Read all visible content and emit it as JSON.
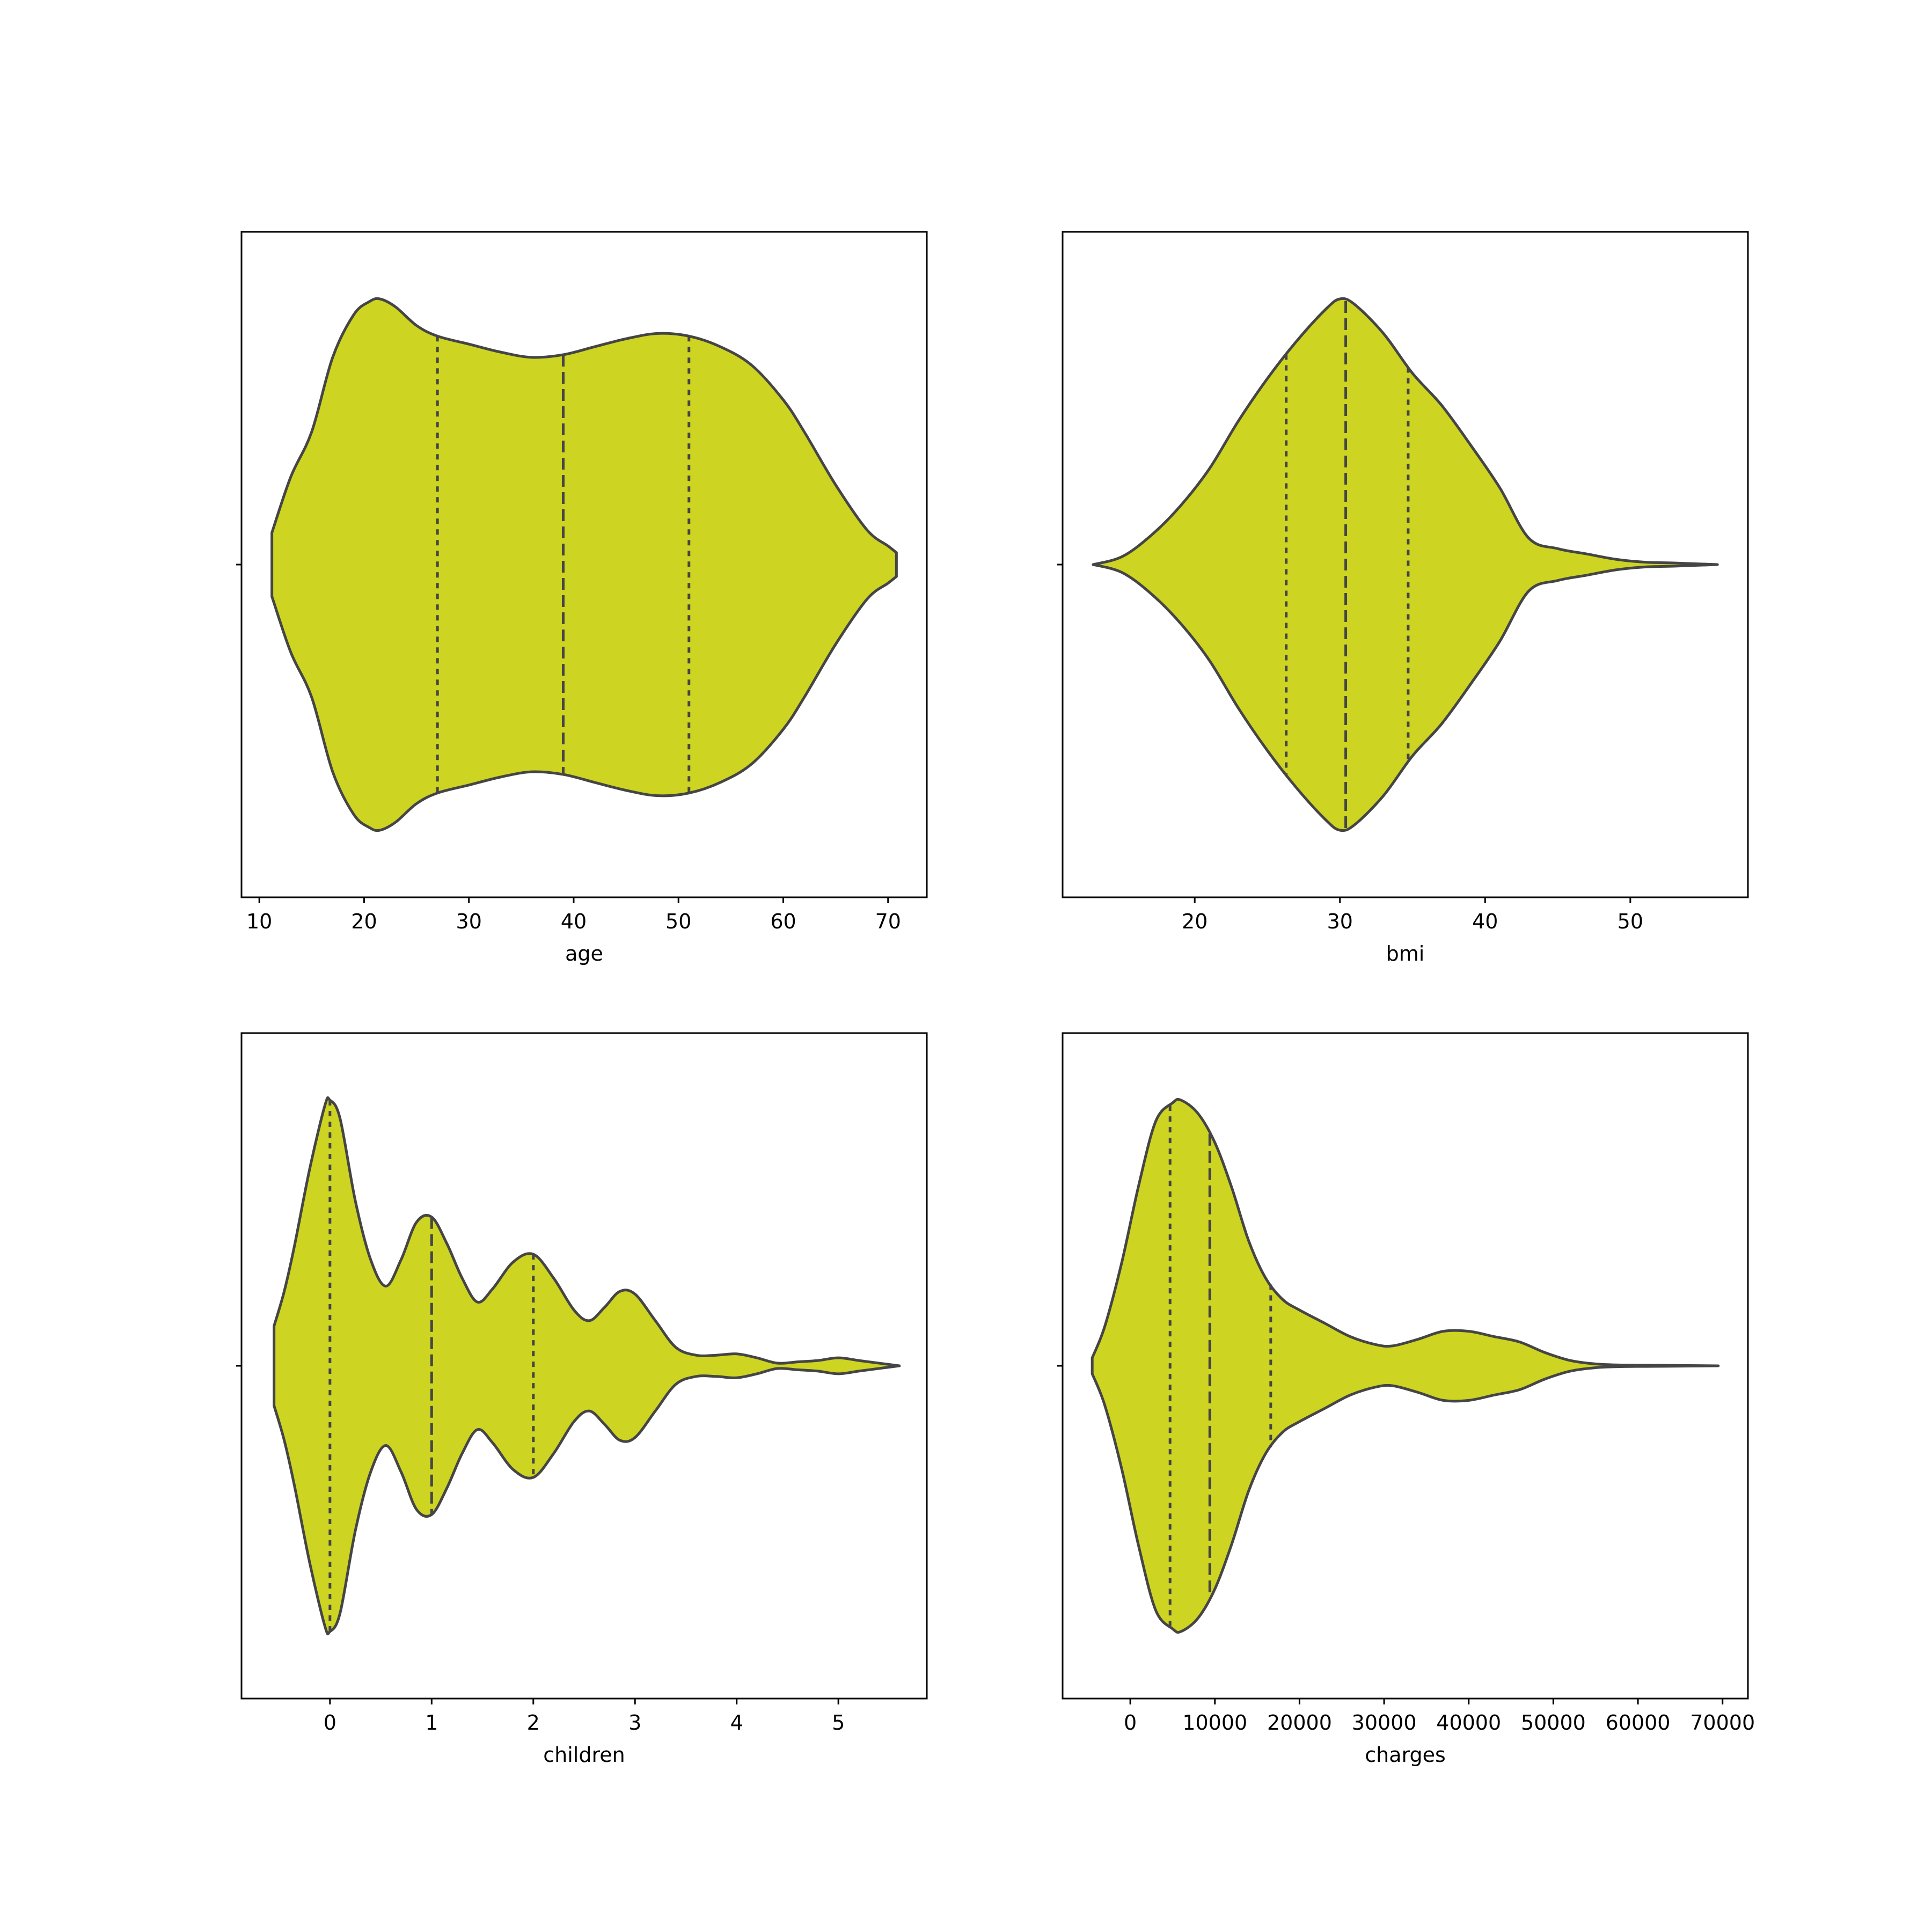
{
  "figure": {
    "fill_color": "#cdd422",
    "edge_color": "#454545",
    "background": "#ffffff"
  },
  "chart_data": [
    {
      "type": "violin",
      "xlabel": "age",
      "ylabel": "",
      "xlim": [
        8.3,
        73.7
      ],
      "xticks": [
        10,
        20,
        30,
        40,
        50,
        60,
        70
      ],
      "range": [
        11.2,
        70.8
      ],
      "density": [
        [
          11.2,
          0.12
        ],
        [
          13,
          0.33
        ],
        [
          15,
          0.5
        ],
        [
          17,
          0.78
        ],
        [
          19,
          0.94
        ],
        [
          20.5,
          0.99
        ],
        [
          21.5,
          1.0
        ],
        [
          23,
          0.97
        ],
        [
          25,
          0.9
        ],
        [
          27,
          0.86
        ],
        [
          30,
          0.83
        ],
        [
          33,
          0.8
        ],
        [
          36,
          0.78
        ],
        [
          39,
          0.79
        ],
        [
          42,
          0.82
        ],
        [
          45,
          0.85
        ],
        [
          48,
          0.87
        ],
        [
          51,
          0.86
        ],
        [
          54,
          0.82
        ],
        [
          57,
          0.75
        ],
        [
          60,
          0.62
        ],
        [
          62,
          0.5
        ],
        [
          65,
          0.3
        ],
        [
          68,
          0.13
        ],
        [
          70,
          0.07
        ],
        [
          70.8,
          0.045
        ]
      ],
      "quartiles": [
        27,
        39,
        51
      ],
      "median": 39
    },
    {
      "type": "violin",
      "xlabel": "bmi",
      "ylabel": "",
      "xlim": [
        10.9,
        58.1
      ],
      "xticks": [
        20,
        30,
        40,
        50
      ],
      "range": [
        13.0,
        56.0
      ],
      "density": [
        [
          13,
          0.0
        ],
        [
          15,
          0.03
        ],
        [
          17,
          0.11
        ],
        [
          19,
          0.22
        ],
        [
          21,
          0.36
        ],
        [
          23,
          0.54
        ],
        [
          25,
          0.7
        ],
        [
          27,
          0.84
        ],
        [
          29,
          0.96
        ],
        [
          30,
          1.0
        ],
        [
          31,
          0.98
        ],
        [
          33,
          0.87
        ],
        [
          35,
          0.72
        ],
        [
          37,
          0.6
        ],
        [
          39,
          0.45
        ],
        [
          41,
          0.29
        ],
        [
          43,
          0.1
        ],
        [
          45,
          0.06
        ],
        [
          47,
          0.04
        ],
        [
          49,
          0.02
        ],
        [
          51,
          0.009
        ],
        [
          53,
          0.006
        ],
        [
          56,
          0.0
        ]
      ],
      "quartiles": [
        26.3,
        30.4,
        34.7
      ],
      "median": 30.4
    },
    {
      "type": "violin",
      "xlabel": "children",
      "ylabel": "",
      "xlim": [
        -0.87,
        5.87
      ],
      "xticks": [
        0,
        1,
        2,
        3,
        4,
        5
      ],
      "range": [
        -0.55,
        5.6
      ],
      "density": [
        [
          -0.55,
          0.15
        ],
        [
          -0.45,
          0.28
        ],
        [
          -0.35,
          0.45
        ],
        [
          -0.2,
          0.74
        ],
        [
          -0.05,
          0.98
        ],
        [
          0.0,
          1.0
        ],
        [
          0.1,
          0.93
        ],
        [
          0.25,
          0.62
        ],
        [
          0.4,
          0.4
        ],
        [
          0.55,
          0.3
        ],
        [
          0.7,
          0.4
        ],
        [
          0.85,
          0.54
        ],
        [
          1.0,
          0.56
        ],
        [
          1.15,
          0.46
        ],
        [
          1.3,
          0.33
        ],
        [
          1.45,
          0.24
        ],
        [
          1.6,
          0.29
        ],
        [
          1.8,
          0.39
        ],
        [
          2.0,
          0.42
        ],
        [
          2.2,
          0.33
        ],
        [
          2.4,
          0.21
        ],
        [
          2.55,
          0.17
        ],
        [
          2.7,
          0.22
        ],
        [
          2.85,
          0.28
        ],
        [
          3.0,
          0.27
        ],
        [
          3.2,
          0.17
        ],
        [
          3.4,
          0.07
        ],
        [
          3.6,
          0.04
        ],
        [
          3.8,
          0.04
        ],
        [
          4.0,
          0.045
        ],
        [
          4.2,
          0.03
        ],
        [
          4.4,
          0.01
        ],
        [
          4.6,
          0.015
        ],
        [
          4.8,
          0.02
        ],
        [
          5.0,
          0.03
        ],
        [
          5.2,
          0.02
        ],
        [
          5.4,
          0.01
        ],
        [
          5.6,
          0.0
        ]
      ],
      "quartiles": [
        0,
        1,
        2
      ],
      "median": 1
    },
    {
      "type": "violin",
      "xlabel": "charges",
      "ylabel": "",
      "xlim": [
        -8000,
        73000
      ],
      "xticks": [
        0,
        10000,
        20000,
        30000,
        40000,
        50000,
        60000,
        70000
      ],
      "range": [
        -4500,
        69500
      ],
      "density": [
        [
          -4500,
          0.03
        ],
        [
          -3000,
          0.15
        ],
        [
          -1000,
          0.39
        ],
        [
          1000,
          0.68
        ],
        [
          3000,
          0.92
        ],
        [
          5000,
          0.99
        ],
        [
          6000,
          1.0
        ],
        [
          8000,
          0.95
        ],
        [
          10000,
          0.84
        ],
        [
          12000,
          0.67
        ],
        [
          14000,
          0.47
        ],
        [
          16000,
          0.33
        ],
        [
          18000,
          0.25
        ],
        [
          20000,
          0.21
        ],
        [
          23000,
          0.16
        ],
        [
          26000,
          0.11
        ],
        [
          29000,
          0.08
        ],
        [
          31000,
          0.075
        ],
        [
          34000,
          0.1
        ],
        [
          37000,
          0.13
        ],
        [
          40000,
          0.13
        ],
        [
          43000,
          0.11
        ],
        [
          46000,
          0.09
        ],
        [
          49000,
          0.05
        ],
        [
          52000,
          0.02
        ],
        [
          55000,
          0.007
        ],
        [
          58000,
          0.003
        ],
        [
          62000,
          0.002
        ],
        [
          66000,
          0.001
        ],
        [
          69500,
          0.0
        ]
      ],
      "quartiles": [
        4700,
        9400,
        16600
      ],
      "median": 9400
    }
  ]
}
